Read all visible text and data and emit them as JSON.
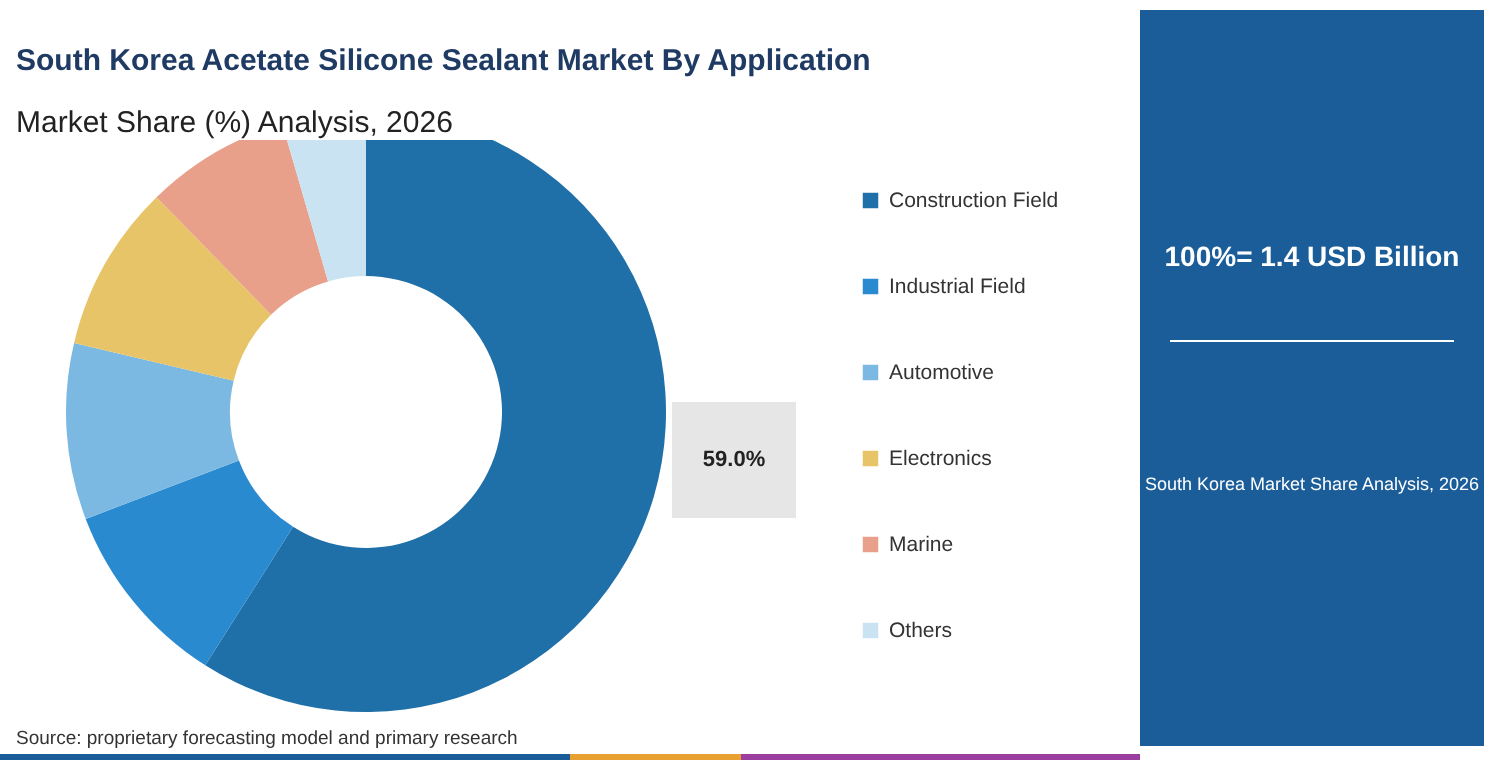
{
  "chart_data": {
    "type": "donut",
    "title": "South Korea Acetate Silicone Sealant Market By Application",
    "subtitle": "Market Share (%) Analysis, 2026",
    "categories": [
      "Construction Field",
      "Industrial Field",
      "Automotive",
      "Electronics",
      "Marine",
      "Others"
    ],
    "values": [
      59.0,
      10.2,
      9.5,
      9.0,
      7.8,
      4.5
    ],
    "value_labels": [
      "59.0%",
      null,
      null,
      null,
      null,
      null
    ],
    "colors": [
      "#1f6fa8",
      "#2a8ad0",
      "#7bb9e2",
      "#e8c468",
      "#e9a08a",
      "#c9e3f3"
    ],
    "legend": "right",
    "annotations": [
      "100%= 1.4 USD Billion",
      "South Korea Market Share Analysis, 2026",
      "Source: proprietary forecasting model and primary research"
    ]
  }
}
